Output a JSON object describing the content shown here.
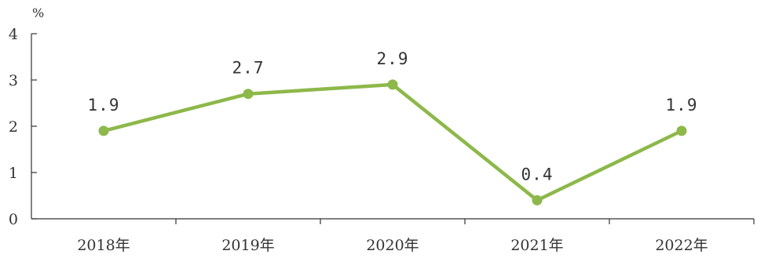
{
  "chart_data": {
    "type": "line",
    "title": "",
    "xlabel": "",
    "ylabel": "",
    "y_unit": "%",
    "categories": [
      "2018年",
      "2019年",
      "2020年",
      "2021年",
      "2022年"
    ],
    "series": [
      {
        "values": [
          1.9,
          2.7,
          2.9,
          0.4,
          1.9
        ],
        "data_labels": [
          "1.9",
          "2.7",
          "2.9",
          "0.4",
          "1.9"
        ],
        "color": "#8db84a"
      }
    ],
    "ylim": [
      0,
      4
    ],
    "yticks": [
      "0",
      "1",
      "2",
      "3",
      "4"
    ],
    "grid": false,
    "legend": "none"
  }
}
